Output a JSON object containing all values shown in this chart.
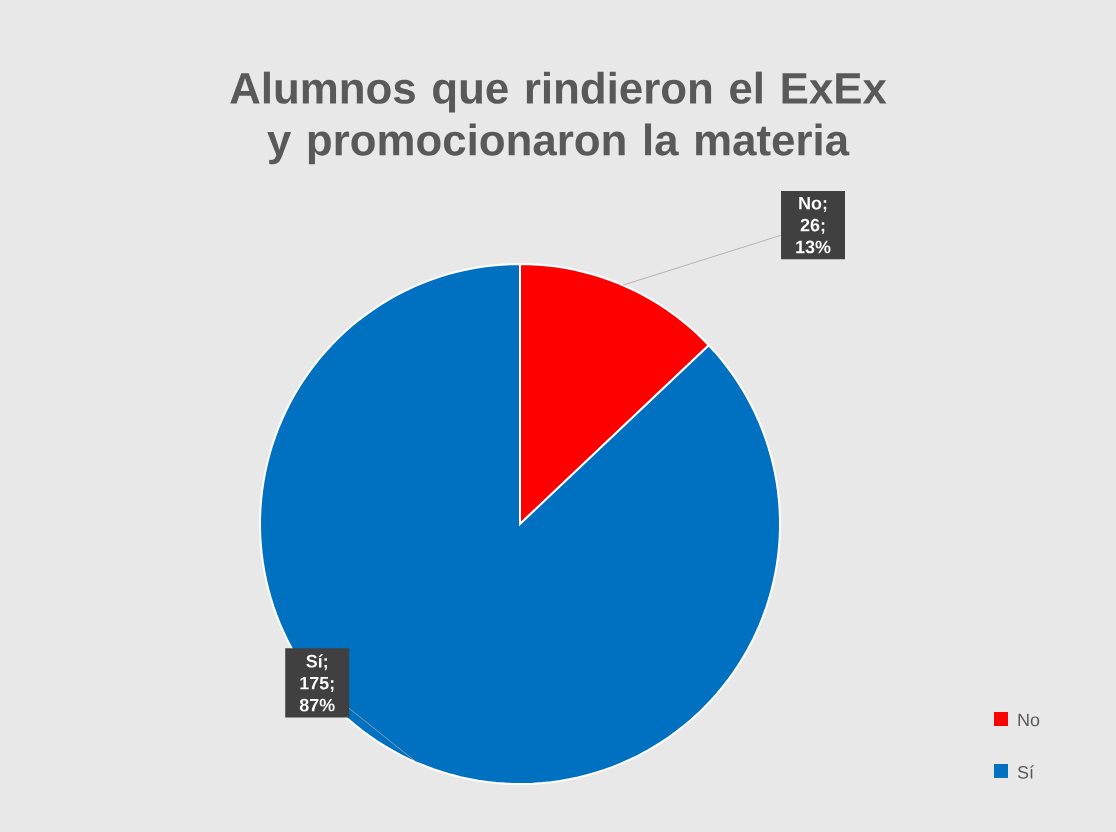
{
  "chart_data": {
    "type": "pie",
    "title": "Alumnos que rindieron el ExEx y promocionaron la materia",
    "categories": [
      "No",
      "Sí"
    ],
    "values": [
      26,
      175
    ],
    "colors": [
      "#ff0000",
      "#0070c0"
    ],
    "value_labels": [
      "No; 26; 13%",
      "Sí; 175; 87%"
    ],
    "legend": "right"
  }
}
